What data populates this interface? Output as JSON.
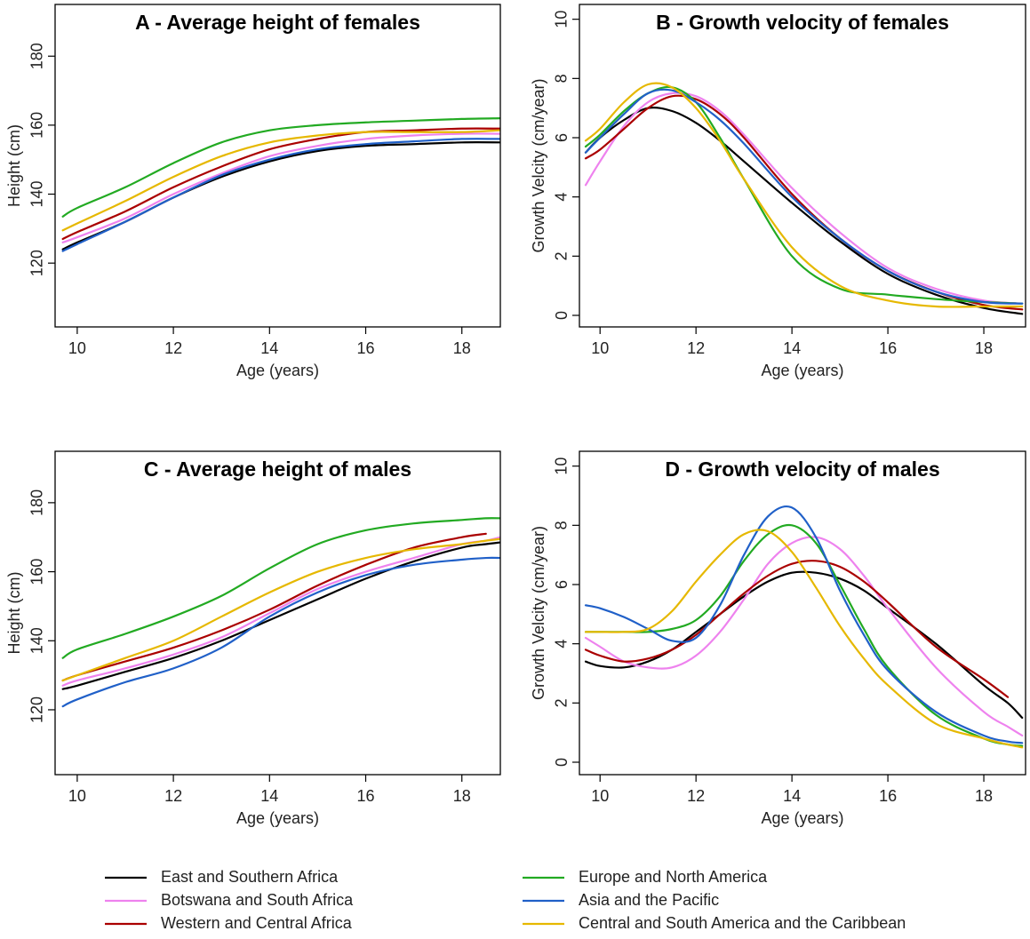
{
  "chart_data": [
    {
      "type": "line",
      "title": "A - Average height of females",
      "xlabel": "Age (years)",
      "ylabel": "Height (cm)",
      "xlim": [
        9.54,
        18.8
      ],
      "ylim": [
        101.5,
        195
      ],
      "xticks": [
        10,
        12,
        14,
        16,
        18
      ],
      "yticks": [
        120,
        140,
        160,
        180
      ],
      "legend": "bottom",
      "x": [
        9.7,
        10,
        11,
        12,
        13,
        14,
        15,
        16,
        17,
        18,
        18.8
      ],
      "series": [
        {
          "name": "East and Southern Africa",
          "color": "#000000",
          "values": [
            124,
            126,
            132,
            139,
            145,
            149.5,
            152.5,
            154,
            154.5,
            155,
            155
          ]
        },
        {
          "name": "Botswana and South Africa",
          "color": "#ee82ee",
          "values": [
            126,
            127.5,
            133,
            140,
            146,
            151,
            154,
            156,
            157,
            157.5,
            157.5
          ]
        },
        {
          "name": "Western and Central Africa",
          "color": "#aa0000",
          "values": [
            127,
            129,
            135,
            142,
            148,
            153,
            156,
            158,
            158.5,
            159,
            159
          ]
        },
        {
          "name": "Europe and North America",
          "color": "#22aa22",
          "values": [
            133.5,
            136,
            142,
            149,
            155,
            158.5,
            160,
            160.8,
            161.3,
            161.8,
            162
          ]
        },
        {
          "name": "Asia and the Pacific",
          "color": "#2060c8",
          "values": [
            123.5,
            125.5,
            132,
            139,
            145.5,
            150,
            153,
            154.5,
            155.3,
            156,
            156
          ]
        },
        {
          "name": "Central and South America and the Caribbean",
          "color": "#e6b800",
          "values": [
            129.5,
            131.5,
            138,
            145,
            151,
            155,
            157,
            158,
            158,
            158,
            158.5
          ]
        }
      ]
    },
    {
      "type": "line",
      "title": "B - Growth velocity of females",
      "xlabel": "Age (years)",
      "ylabel": "Growth Velcity (cm/year)",
      "xlim": [
        9.57,
        18.87
      ],
      "ylim": [
        -0.39,
        10.5
      ],
      "xticks": [
        10,
        12,
        14,
        16,
        18
      ],
      "yticks": [
        0,
        2,
        4,
        6,
        8,
        10
      ],
      "x": [
        9.7,
        10,
        10.5,
        11,
        11.5,
        12,
        12.5,
        13,
        14,
        15,
        16,
        17,
        18,
        18.8
      ],
      "series": [
        {
          "name": "East and Southern Africa",
          "color": "#000000",
          "values": [
            5.5,
            6.0,
            6.6,
            7.0,
            6.9,
            6.5,
            5.9,
            5.2,
            3.8,
            2.5,
            1.4,
            0.7,
            0.25,
            0.05
          ]
        },
        {
          "name": "Botswana and South Africa",
          "color": "#ee82ee",
          "values": [
            4.4,
            5.2,
            6.4,
            7.2,
            7.5,
            7.4,
            6.9,
            6.1,
            4.3,
            2.8,
            1.6,
            0.9,
            0.5,
            0.4
          ]
        },
        {
          "name": "Western and Central Africa",
          "color": "#aa0000",
          "values": [
            5.3,
            5.6,
            6.3,
            7.0,
            7.4,
            7.3,
            6.8,
            6.0,
            4.1,
            2.6,
            1.5,
            0.8,
            0.35,
            0.2
          ]
        },
        {
          "name": "Europe and North America",
          "color": "#22aa22",
          "values": [
            5.7,
            6.1,
            6.9,
            7.5,
            7.7,
            7.2,
            6.0,
            4.6,
            2.0,
            0.9,
            0.7,
            0.55,
            0.45,
            0.4
          ]
        },
        {
          "name": "Asia and the Pacific",
          "color": "#2060c8",
          "values": [
            5.5,
            6.0,
            6.8,
            7.5,
            7.6,
            7.2,
            6.6,
            5.8,
            4.0,
            2.6,
            1.5,
            0.8,
            0.45,
            0.4
          ]
        },
        {
          "name": "Central and South America and the Caribbean",
          "color": "#e6b800",
          "values": [
            5.9,
            6.3,
            7.2,
            7.8,
            7.7,
            7.0,
            5.9,
            4.6,
            2.3,
            1.0,
            0.5,
            0.3,
            0.3,
            0.3
          ]
        }
      ]
    },
    {
      "type": "line",
      "title": "C - Average height of males",
      "xlabel": "Age (years)",
      "ylabel": "Height (cm)",
      "xlim": [
        9.54,
        18.8
      ],
      "ylim": [
        101.2,
        194.9
      ],
      "xticks": [
        10,
        12,
        14,
        16,
        18
      ],
      "yticks": [
        120,
        140,
        160,
        180
      ],
      "x": [
        9.7,
        10,
        11,
        12,
        13,
        14,
        15,
        16,
        17,
        18,
        18.5,
        18.8
      ],
      "series": [
        {
          "name": "East and Southern Africa",
          "color": "#000000",
          "values": [
            126,
            127,
            131,
            135,
            140,
            146,
            152,
            158,
            163,
            167,
            168,
            168.5
          ]
        },
        {
          "name": "Botswana and South Africa",
          "color": "#ee82ee",
          "values": [
            127,
            128.5,
            132,
            136,
            141,
            148,
            155,
            160,
            164,
            168,
            169,
            170
          ]
        },
        {
          "name": "Western and Central Africa",
          "color": "#aa0000",
          "values": [
            128.5,
            130,
            134,
            138,
            143,
            149,
            156,
            162,
            167,
            170,
            171,
            null
          ]
        },
        {
          "name": "Europe and North America",
          "color": "#22aa22",
          "values": [
            135,
            137.5,
            142,
            147,
            153,
            161,
            168,
            172,
            174,
            175,
            175.5,
            175.5
          ]
        },
        {
          "name": "Asia and the Pacific",
          "color": "#2060c8",
          "values": [
            121,
            123,
            128,
            132,
            138,
            147,
            154,
            159,
            162,
            163.5,
            164,
            164
          ]
        },
        {
          "name": "Central and South America and the Caribbean",
          "color": "#e6b800",
          "values": [
            128.5,
            130,
            135,
            140,
            147,
            154,
            160,
            164,
            166.5,
            168,
            169,
            169.5
          ]
        }
      ]
    },
    {
      "type": "line",
      "title": "D - Growth velocity of males",
      "xlabel": "Age (years)",
      "ylabel": "Growth Velcity (cm/year)",
      "xlim": [
        9.57,
        18.87
      ],
      "ylim": [
        -0.42,
        10.5
      ],
      "xticks": [
        10,
        12,
        14,
        16,
        18
      ],
      "yticks": [
        0,
        2,
        4,
        6,
        8,
        10
      ],
      "x": [
        9.7,
        10,
        10.5,
        11,
        11.5,
        12,
        12.5,
        13,
        13.5,
        14,
        14.5,
        15,
        15.5,
        16,
        17,
        18,
        18.5,
        18.8
      ],
      "series": [
        {
          "name": "East and Southern Africa",
          "color": "#000000",
          "values": [
            3.4,
            3.25,
            3.2,
            3.4,
            3.8,
            4.4,
            5.0,
            5.6,
            6.1,
            6.4,
            6.4,
            6.2,
            5.8,
            5.2,
            4.0,
            2.6,
            2.0,
            1.5
          ]
        },
        {
          "name": "Botswana and South Africa",
          "color": "#ee82ee",
          "values": [
            4.2,
            3.9,
            3.4,
            3.2,
            3.2,
            3.6,
            4.4,
            5.5,
            6.7,
            7.4,
            7.6,
            7.2,
            6.3,
            5.2,
            3.2,
            1.7,
            1.2,
            0.9
          ]
        },
        {
          "name": "Western and Central Africa",
          "color": "#aa0000",
          "values": [
            3.8,
            3.6,
            3.4,
            3.5,
            3.8,
            4.3,
            5.0,
            5.7,
            6.3,
            6.7,
            6.8,
            6.6,
            6.1,
            5.4,
            3.9,
            2.8,
            2.2,
            null
          ]
        },
        {
          "name": "Europe and North America",
          "color": "#22aa22",
          "values": [
            4.4,
            4.4,
            4.4,
            4.4,
            4.5,
            4.8,
            5.6,
            6.8,
            7.7,
            8.0,
            7.4,
            6.0,
            4.5,
            3.2,
            1.6,
            0.8,
            0.6,
            0.55
          ]
        },
        {
          "name": "Asia and the Pacific",
          "color": "#2060c8",
          "values": [
            5.3,
            5.2,
            4.9,
            4.5,
            4.1,
            4.2,
            5.3,
            7.0,
            8.3,
            8.6,
            7.6,
            5.8,
            4.3,
            3.1,
            1.7,
            0.9,
            0.7,
            0.65
          ]
        },
        {
          "name": "Central and South America and the Caribbean",
          "color": "#e6b800",
          "values": [
            4.4,
            4.4,
            4.4,
            4.5,
            5.1,
            6.1,
            7.0,
            7.7,
            7.8,
            7.1,
            5.9,
            4.6,
            3.5,
            2.6,
            1.3,
            0.8,
            0.6,
            0.5
          ]
        }
      ]
    }
  ]
}
